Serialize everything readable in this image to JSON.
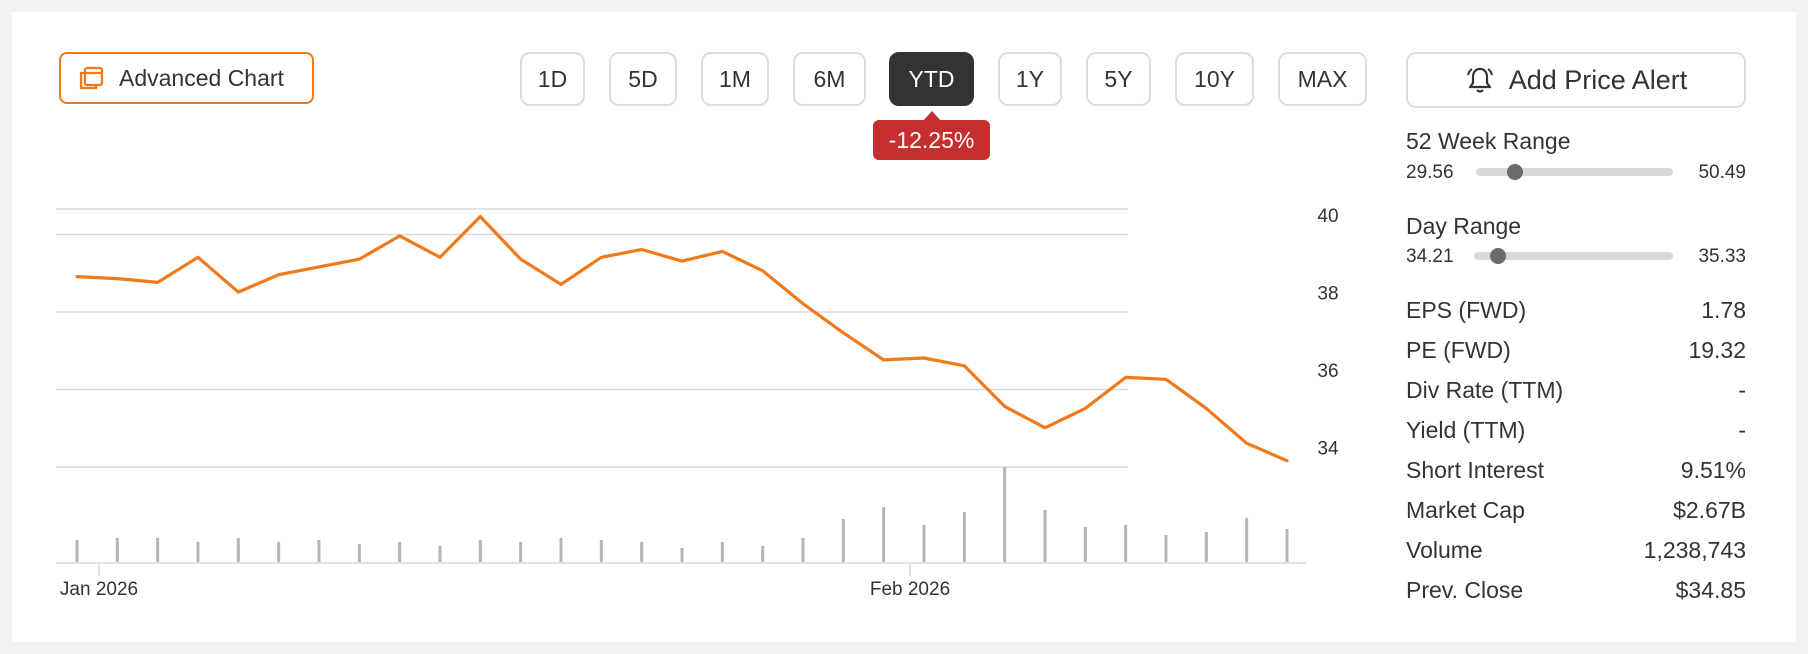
{
  "toolbar": {
    "advanced_chart_label": "Advanced Chart",
    "ranges": [
      "1D",
      "5D",
      "1M",
      "6M",
      "YTD",
      "1Y",
      "5Y",
      "10Y",
      "MAX"
    ],
    "active_range": "YTD",
    "change_label": "-12.25%",
    "add_alert_label": "Add Price Alert"
  },
  "colors": {
    "accent": "#f07a1a",
    "negative": "#c62f2f",
    "active_bg": "#333333",
    "volume_bar": "#b5b5b5",
    "grid": "#d9d9d9"
  },
  "chart_data": {
    "type": "line",
    "x_tick_labels": [
      "Jan 2026",
      "Feb 2026"
    ],
    "y_ticks": [
      34,
      36,
      38,
      40
    ],
    "ylim": [
      33.6,
      41.6
    ],
    "grid": true,
    "series": [
      {
        "values": [
          38.9,
          38.85,
          38.75,
          39.4,
          38.5,
          38.95,
          39.15,
          39.35,
          39.95,
          39.4,
          40.45,
          39.35,
          38.7,
          39.4,
          39.6,
          39.3,
          39.55,
          39.05,
          38.2,
          37.45,
          36.75,
          36.8,
          36.6,
          35.55,
          35.0,
          35.5,
          36.3,
          36.25,
          35.5,
          34.6,
          34.15
        ]
      }
    ],
    "volume": [
      22,
      24,
      24,
      20,
      24,
      20,
      22,
      18,
      20,
      16,
      22,
      20,
      24,
      22,
      20,
      14,
      20,
      16,
      24,
      43,
      55,
      37,
      50,
      95,
      52,
      35,
      37,
      27,
      30,
      44,
      33
    ]
  },
  "stats": {
    "week52_range": {
      "label": "52 Week Range",
      "low": "29.56",
      "high": "50.49",
      "position": 0.2
    },
    "day_range": {
      "label": "Day Range",
      "low": "34.21",
      "high": "35.33",
      "position": 0.12
    },
    "rows": [
      {
        "label": "EPS (FWD)",
        "value": "1.78"
      },
      {
        "label": "PE (FWD)",
        "value": "19.32"
      },
      {
        "label": "Div Rate (TTM)",
        "value": "-"
      },
      {
        "label": "Yield (TTM)",
        "value": "-"
      },
      {
        "label": "Short Interest",
        "value": "9.51%"
      },
      {
        "label": "Market Cap",
        "value": "$2.67B"
      },
      {
        "label": "Volume",
        "value": "1,238,743"
      },
      {
        "label": "Prev. Close",
        "value": "$34.85"
      }
    ]
  }
}
